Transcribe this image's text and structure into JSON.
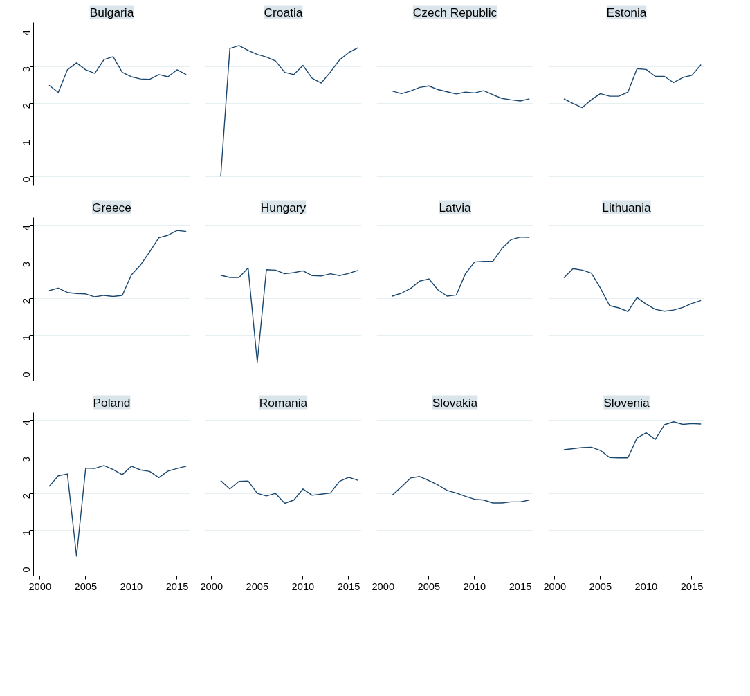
{
  "chart_data": [
    {
      "type": "line",
      "title": "Bulgaria",
      "x": [
        2001,
        2002,
        2003,
        2004,
        2005,
        2006,
        2007,
        2008,
        2009,
        2010,
        2011,
        2012,
        2013,
        2014,
        2015,
        2016
      ],
      "values": [
        2.49,
        2.29,
        2.91,
        3.1,
        2.91,
        2.81,
        3.19,
        3.27,
        2.84,
        2.72,
        2.66,
        2.65,
        2.78,
        2.72,
        2.91,
        2.78
      ],
      "color": "#1a476f",
      "xlim": [
        1999.3,
        2016.4
      ],
      "ylim": [
        -0.25,
        4.2
      ],
      "xticks": [
        2000,
        2005,
        2010,
        2015
      ],
      "yticks": [
        0,
        1,
        2,
        3,
        4
      ],
      "grid": "y",
      "tick_labels": "y"
    },
    {
      "type": "line",
      "title": "Croatia",
      "x": [
        2001,
        2002,
        2003,
        2004,
        2005,
        2006,
        2007,
        2008,
        2009,
        2010,
        2011,
        2012,
        2013,
        2014,
        2015,
        2016
      ],
      "values": [
        0,
        3.49,
        3.57,
        3.44,
        3.33,
        3.26,
        3.15,
        2.84,
        2.78,
        3.03,
        2.68,
        2.55,
        2.85,
        3.18,
        3.38,
        3.51
      ],
      "color": "#1a476f",
      "xlim": [
        1999.3,
        2016.4
      ],
      "xticks": [
        2000,
        2005,
        2010,
        2015
      ],
      "yticks": [
        0,
        1,
        2,
        3,
        4
      ],
      "grid": "y",
      "tick_labels": false
    },
    {
      "type": "line",
      "title": "Czech Republic",
      "x": [
        2001,
        2002,
        2003,
        2004,
        2005,
        2006,
        2007,
        2008,
        2009,
        2010,
        2011,
        2012,
        2013,
        2014,
        2015,
        2016
      ],
      "values": [
        2.33,
        2.26,
        2.33,
        2.43,
        2.47,
        2.37,
        2.31,
        2.25,
        2.3,
        2.28,
        2.34,
        2.23,
        2.13,
        2.09,
        2.06,
        2.12
      ],
      "color": "#1a476f",
      "xlim": [
        1999.3,
        2016.4
      ],
      "xticks": [
        2000,
        2005,
        2010,
        2015
      ],
      "yticks": [
        0,
        1,
        2,
        3,
        4
      ],
      "grid": "y",
      "tick_labels": false
    },
    {
      "type": "line",
      "title": "Estonia",
      "x": [
        2001,
        2002,
        2003,
        2004,
        2005,
        2006,
        2007,
        2008,
        2009,
        2010,
        2011,
        2012,
        2013,
        2014,
        2015,
        2016
      ],
      "values": [
        2.12,
        1.99,
        1.88,
        2.09,
        2.26,
        2.19,
        2.19,
        2.3,
        2.94,
        2.92,
        2.73,
        2.73,
        2.56,
        2.7,
        2.76,
        3.05
      ],
      "color": "#1a476f",
      "xlim": [
        1999.3,
        2016.4
      ],
      "xticks": [
        2000,
        2005,
        2010,
        2015
      ],
      "yticks": [
        0,
        1,
        2,
        3,
        4
      ],
      "grid": "y",
      "tick_labels": false
    },
    {
      "type": "line",
      "title": "Greece",
      "x": [
        2001,
        2002,
        2003,
        2004,
        2005,
        2006,
        2007,
        2008,
        2009,
        2010,
        2011,
        2012,
        2013,
        2014,
        2015,
        2016
      ],
      "values": [
        2.21,
        2.28,
        2.16,
        2.13,
        2.12,
        2.04,
        2.08,
        2.05,
        2.08,
        2.64,
        2.91,
        3.27,
        3.65,
        3.72,
        3.85,
        3.82
      ],
      "color": "#1a476f",
      "xlim": [
        1999.3,
        2016.4
      ],
      "ylim": [
        -0.25,
        4.2
      ],
      "xticks": [
        2000,
        2005,
        2010,
        2015
      ],
      "yticks": [
        0,
        1,
        2,
        3,
        4
      ],
      "grid": "y",
      "tick_labels": "y"
    },
    {
      "type": "line",
      "title": "Hungary",
      "x": [
        2001,
        2002,
        2003,
        2004,
        2005,
        2006,
        2007,
        2008,
        2009,
        2010,
        2011,
        2012,
        2013,
        2014,
        2015,
        2016
      ],
      "values": [
        2.63,
        2.57,
        2.57,
        2.83,
        0.26,
        2.78,
        2.77,
        2.67,
        2.7,
        2.75,
        2.62,
        2.61,
        2.67,
        2.62,
        2.68,
        2.76
      ],
      "color": "#1a476f",
      "xlim": [
        1999.3,
        2016.4
      ],
      "xticks": [
        2000,
        2005,
        2010,
        2015
      ],
      "yticks": [
        0,
        1,
        2,
        3,
        4
      ],
      "grid": "y",
      "tick_labels": false
    },
    {
      "type": "line",
      "title": "Latvia",
      "x": [
        2001,
        2002,
        2003,
        2004,
        2005,
        2006,
        2007,
        2008,
        2009,
        2010,
        2011,
        2012,
        2013,
        2014,
        2015,
        2016
      ],
      "values": [
        2.06,
        2.14,
        2.27,
        2.47,
        2.53,
        2.23,
        2.06,
        2.09,
        2.67,
        2.99,
        3.01,
        3.01,
        3.36,
        3.6,
        3.67,
        3.66
      ],
      "color": "#1a476f",
      "xlim": [
        1999.3,
        2016.4
      ],
      "xticks": [
        2000,
        2005,
        2010,
        2015
      ],
      "yticks": [
        0,
        1,
        2,
        3,
        4
      ],
      "grid": "y",
      "tick_labels": false
    },
    {
      "type": "line",
      "title": "Lithuania",
      "x": [
        2001,
        2002,
        2003,
        2004,
        2005,
        2006,
        2007,
        2008,
        2009,
        2010,
        2011,
        2012,
        2013,
        2014,
        2015,
        2016
      ],
      "values": [
        2.56,
        2.81,
        2.77,
        2.69,
        2.28,
        1.8,
        1.74,
        1.64,
        2.02,
        1.84,
        1.7,
        1.65,
        1.68,
        1.75,
        1.86,
        1.94
      ],
      "color": "#1a476f",
      "xlim": [
        1999.3,
        2016.4
      ],
      "xticks": [
        2000,
        2005,
        2010,
        2015
      ],
      "yticks": [
        0,
        1,
        2,
        3,
        4
      ],
      "grid": "y",
      "tick_labels": false
    },
    {
      "type": "line",
      "title": "Poland",
      "x": [
        2001,
        2002,
        2003,
        2004,
        2005,
        2006,
        2007,
        2008,
        2009,
        2010,
        2011,
        2012,
        2013,
        2014,
        2015,
        2016
      ],
      "values": [
        2.19,
        2.48,
        2.53,
        0.29,
        2.69,
        2.68,
        2.76,
        2.65,
        2.51,
        2.74,
        2.64,
        2.6,
        2.43,
        2.61,
        2.68,
        2.74
      ],
      "color": "#1a476f",
      "xlim": [
        1999.3,
        2016.4
      ],
      "ylim": [
        -0.25,
        4.2
      ],
      "xticks": [
        2000,
        2005,
        2010,
        2015
      ],
      "yticks": [
        0,
        1,
        2,
        3,
        4
      ],
      "grid": "y"
    },
    {
      "type": "line",
      "title": "Romania",
      "x": [
        2001,
        2002,
        2003,
        2004,
        2005,
        2006,
        2007,
        2008,
        2009,
        2010,
        2011,
        2012,
        2013,
        2014,
        2015,
        2016
      ],
      "values": [
        2.35,
        2.12,
        2.33,
        2.34,
        2.0,
        1.93,
        2.0,
        1.73,
        1.82,
        2.12,
        1.95,
        1.98,
        2.01,
        2.33,
        2.44,
        2.36
      ],
      "color": "#1a476f",
      "xlim": [
        1999.3,
        2016.4
      ],
      "xticks": [
        2000,
        2005,
        2010,
        2015
      ],
      "yticks": [
        0,
        1,
        2,
        3,
        4
      ],
      "grid": "y",
      "tick_labels": "x"
    },
    {
      "type": "line",
      "title": "Slovakia",
      "x": [
        2001,
        2002,
        2003,
        2004,
        2005,
        2006,
        2007,
        2008,
        2009,
        2010,
        2011,
        2012,
        2013,
        2014,
        2015,
        2016
      ],
      "values": [
        1.95,
        2.18,
        2.42,
        2.46,
        2.35,
        2.23,
        2.08,
        2.01,
        1.92,
        1.84,
        1.82,
        1.74,
        1.74,
        1.77,
        1.77,
        1.82
      ],
      "color": "#1a476f",
      "xlim": [
        1999.3,
        2016.4
      ],
      "xticks": [
        2000,
        2005,
        2010,
        2015
      ],
      "yticks": [
        0,
        1,
        2,
        3,
        4
      ],
      "grid": "y",
      "tick_labels": "x"
    },
    {
      "type": "line",
      "title": "Slovenia",
      "x": [
        2001,
        2002,
        2003,
        2004,
        2005,
        2006,
        2007,
        2008,
        2009,
        2010,
        2011,
        2012,
        2013,
        2014,
        2015,
        2016
      ],
      "values": [
        3.19,
        3.22,
        3.25,
        3.26,
        3.17,
        2.98,
        2.97,
        2.97,
        3.51,
        3.65,
        3.47,
        3.87,
        3.95,
        3.88,
        3.9,
        3.89
      ],
      "color": "#1a476f",
      "xlim": [
        1999.3,
        2016.4
      ],
      "xticks": [
        2000,
        2005,
        2010,
        2015
      ],
      "yticks": [
        0,
        1,
        2,
        3,
        4
      ],
      "grid": "y",
      "tick_labels": "x"
    }
  ]
}
